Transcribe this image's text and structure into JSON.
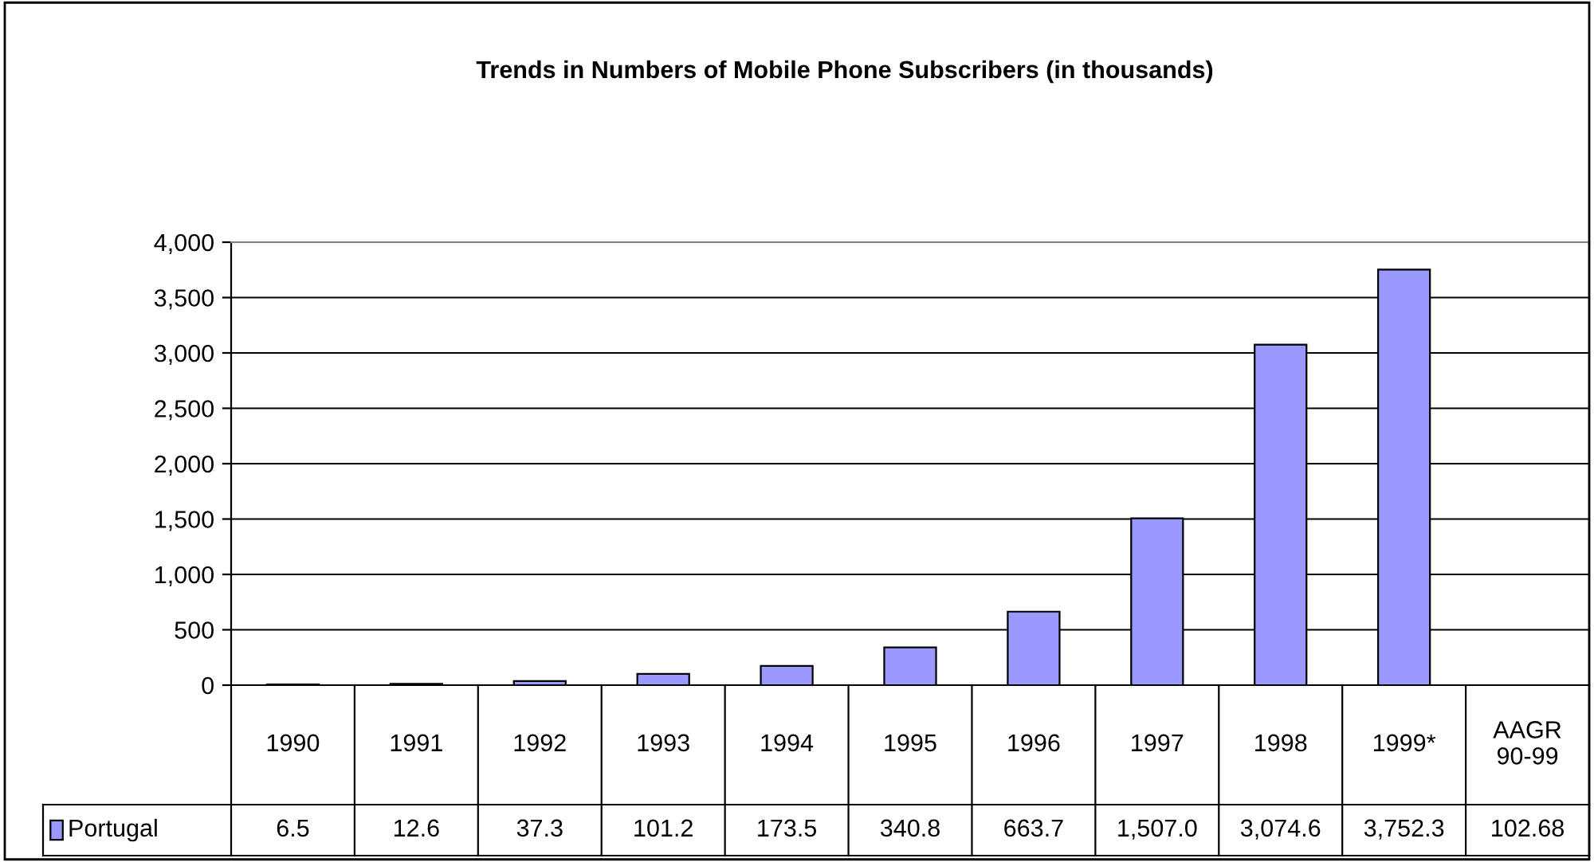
{
  "chart_data": {
    "type": "bar",
    "title": "Trends in Numbers of Mobile Phone Subscribers (in thousands)",
    "categories": [
      "1990",
      "1991",
      "1992",
      "1993",
      "1994",
      "1995",
      "1996",
      "1997",
      "1998",
      "1999*",
      "AAGR\n90-99"
    ],
    "series": [
      {
        "name": "Portugal",
        "color": "#9999ff",
        "values": [
          6.5,
          12.6,
          37.3,
          101.2,
          173.5,
          340.8,
          663.7,
          1507.0,
          3074.6,
          3752.3,
          null
        ],
        "value_labels": [
          "6.5",
          "12.6",
          "37.3",
          "101.2",
          "173.5",
          "340.8",
          "663.7",
          "1,507.0",
          "3,074.6",
          "3,752.3",
          "102.68"
        ]
      }
    ],
    "ylim": [
      0,
      4000
    ],
    "yticks": [
      {
        "value": 0,
        "label": "0"
      },
      {
        "value": 500,
        "label": "500"
      },
      {
        "value": 1000,
        "label": "1,000"
      },
      {
        "value": 1500,
        "label": "1,500"
      },
      {
        "value": 2000,
        "label": "2,000"
      },
      {
        "value": 2500,
        "label": "2,500"
      },
      {
        "value": 3000,
        "label": "3,000"
      },
      {
        "value": 3500,
        "label": "3,500"
      },
      {
        "value": 4000,
        "label": "4,000"
      }
    ],
    "grid": "y",
    "legend": "bottom left"
  }
}
